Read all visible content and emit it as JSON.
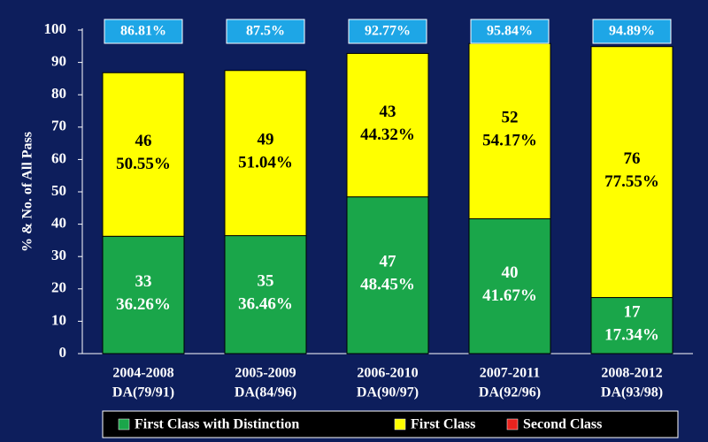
{
  "chart_data": {
    "type": "bar",
    "stacked": true,
    "ylabel": "% & No. of All Pass",
    "ylim": [
      0,
      100
    ],
    "yticks": [
      0,
      10,
      20,
      30,
      40,
      50,
      60,
      70,
      80,
      90,
      100
    ],
    "categories": [
      [
        "2004-2008",
        "DA(79/91)"
      ],
      [
        "2005-2009",
        "DA(84/96)"
      ],
      [
        "2006-2010",
        "DA(90/97)"
      ],
      [
        "2007-2011",
        "DA(92/96)"
      ],
      [
        "2008-2012",
        "DA(93/98)"
      ]
    ],
    "series": [
      {
        "name": "First Class with Distinction",
        "color": "#1aa64a",
        "values": [
          36.26,
          36.46,
          48.45,
          41.67,
          17.34
        ],
        "labels": [
          [
            "33",
            "36.26%"
          ],
          [
            "35",
            "36.46%"
          ],
          [
            "47",
            "48.45%"
          ],
          [
            "40",
            "41.67%"
          ],
          [
            "17",
            "17.34%"
          ]
        ]
      },
      {
        "name": "First Class",
        "color": "#ffff00",
        "values": [
          50.55,
          51.04,
          44.32,
          54.17,
          77.55
        ],
        "labels": [
          [
            "46",
            "50.55%"
          ],
          [
            "49",
            "51.04%"
          ],
          [
            "43",
            "44.32%"
          ],
          [
            "52",
            "54.17%"
          ],
          [
            "76",
            "77.55%"
          ]
        ]
      },
      {
        "name": "Second Class",
        "color": "#e8231e",
        "values": [
          0,
          0,
          0,
          0,
          0
        ],
        "labels": []
      }
    ],
    "totals": [
      "86.81%",
      "87.5%",
      "92.77%",
      "95.84%",
      "94.89%"
    ],
    "total_box_color": "#1ea6e6",
    "bar_border_color": "#000000",
    "background_color": "#0d1e5c",
    "legend_background_color": "#000000",
    "legend_position": "bottom"
  }
}
